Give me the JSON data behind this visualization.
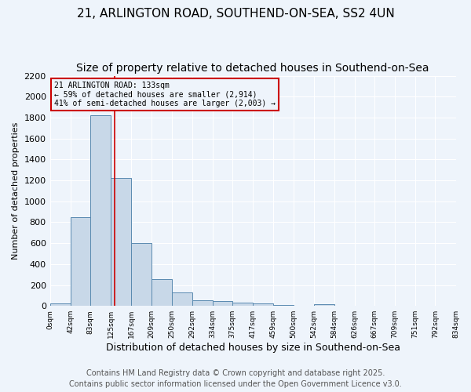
{
  "title_line1": "21, ARLINGTON ROAD, SOUTHEND-ON-SEA, SS2 4UN",
  "title_line2": "Size of property relative to detached houses in Southend-on-Sea",
  "xlabel": "Distribution of detached houses by size in Southend-on-Sea",
  "ylabel": "Number of detached properties",
  "bin_edges": [
    0,
    42,
    83,
    125,
    167,
    209,
    250,
    292,
    334,
    375,
    417,
    459,
    500,
    542,
    584,
    626,
    667,
    709,
    751,
    792,
    834
  ],
  "bar_heights": [
    25,
    850,
    1820,
    1220,
    600,
    260,
    130,
    55,
    50,
    35,
    25,
    10,
    0,
    15,
    0,
    0,
    0,
    0,
    0,
    0
  ],
  "bar_color": "#c8d8e8",
  "bar_edge_color": "#5a8ab0",
  "property_size": 133,
  "property_line_color": "#cc0000",
  "annotation_text": "21 ARLINGTON ROAD: 133sqm\n← 59% of detached houses are smaller (2,914)\n41% of semi-detached houses are larger (2,003) →",
  "annotation_box_color": "#cc0000",
  "annotation_text_fontsize": 7.0,
  "ylim": [
    0,
    2200
  ],
  "yticks": [
    0,
    200,
    400,
    600,
    800,
    1000,
    1200,
    1400,
    1600,
    1800,
    2000,
    2200
  ],
  "background_color": "#eef4fb",
  "grid_color": "#ffffff",
  "footer_line1": "Contains HM Land Registry data © Crown copyright and database right 2025.",
  "footer_line2": "Contains public sector information licensed under the Open Government Licence v3.0.",
  "footer_fontsize": 7,
  "title_fontsize1": 11,
  "title_fontsize2": 10,
  "ylabel_fontsize": 8,
  "xlabel_fontsize": 9,
  "ytick_fontsize": 8,
  "xtick_fontsize": 6.5
}
